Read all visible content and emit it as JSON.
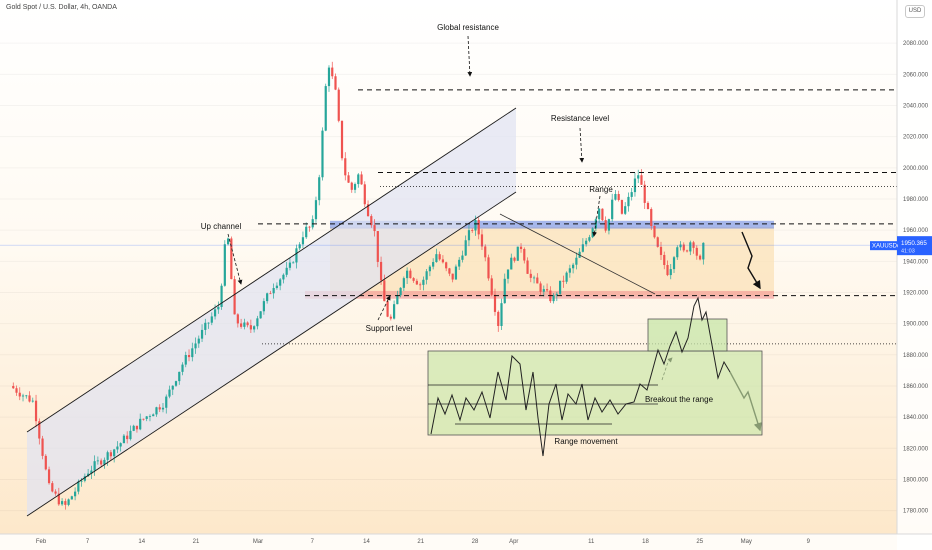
{
  "header": {
    "symbol_title": "Gold Spot / U.S. Dollar, 4h, OANDA",
    "currency": "USD"
  },
  "price_tag": {
    "symbol": "XAUUSD",
    "price": "1950.365",
    "countdown": "41:03"
  },
  "colors": {
    "up": "#26a69a",
    "down": "#ef5350",
    "resistance_zone": "#6b8be6",
    "support_zone": "#f28b8b",
    "range_zone": "#fbe1b8",
    "channel_fill": "#dfe2f2",
    "breakout_box": "#c7e6a8",
    "price_tag": "#2962ff"
  },
  "annotations": {
    "global_resistance": "Global resistance",
    "resistance_level": "Resistance level",
    "range": "Range",
    "up_channel": "Up channel",
    "support_level": "Support level",
    "breakout": "Breakout the range",
    "range_movement": "Range movement"
  },
  "chart_data": {
    "type": "candlestick",
    "title": "Gold Spot / U.S. Dollar, 4h, OANDA",
    "ylim": [
      1765,
      2100
    ],
    "y_ticks": [
      1780,
      1800,
      1820,
      1840,
      1860,
      1880,
      1900,
      1920,
      1940,
      1960,
      1980,
      2000,
      2020,
      2040,
      2060,
      2080
    ],
    "x_ticks": [
      "Feb",
      "7",
      "14",
      "21",
      "Mar",
      "7",
      "14",
      "21",
      "28",
      "Apr",
      "11",
      "18",
      "25",
      "May",
      "9"
    ],
    "x_tick_days": [
      1,
      7,
      14,
      21,
      29,
      36,
      43,
      50,
      57,
      62,
      72,
      79,
      86,
      92,
      100
    ],
    "levels": {
      "global_resistance": 2050,
      "upper_dotted": 1997,
      "dotted_2": 1988,
      "resistance": 1964,
      "support": 1918,
      "lower_dotted": 1887
    },
    "resistance_zone": [
      1961,
      1966
    ],
    "support_zone": [
      1916,
      1921
    ],
    "range_zone": [
      1918,
      1962
    ],
    "last_price": 1950.365,
    "ohlc_path": [
      [
        -3,
        1860
      ],
      [
        0,
        1850
      ],
      [
        2,
        1795
      ],
      [
        4,
        1782
      ],
      [
        7,
        1805
      ],
      [
        11,
        1822
      ],
      [
        14,
        1838
      ],
      [
        17,
        1850
      ],
      [
        19,
        1872
      ],
      [
        22,
        1896
      ],
      [
        24,
        1912
      ],
      [
        25,
        1962
      ],
      [
        26,
        1902
      ],
      [
        28,
        1896
      ],
      [
        31,
        1925
      ],
      [
        33,
        1935
      ],
      [
        35,
        1960
      ],
      [
        36,
        1962
      ],
      [
        37,
        2000
      ],
      [
        38,
        2070
      ],
      [
        39,
        2048
      ],
      [
        40,
        2000
      ],
      [
        41,
        1985
      ],
      [
        42,
        1996
      ],
      [
        43,
        1975
      ],
      [
        44,
        1960
      ],
      [
        45,
        1920
      ],
      [
        46,
        1900
      ],
      [
        48,
        1935
      ],
      [
        50,
        1925
      ],
      [
        52,
        1945
      ],
      [
        54,
        1928
      ],
      [
        56,
        1955
      ],
      [
        57,
        1965
      ],
      [
        58,
        1950
      ],
      [
        59,
        1925
      ],
      [
        60,
        1900
      ],
      [
        61,
        1935
      ],
      [
        63,
        1950
      ],
      [
        64,
        1930
      ],
      [
        66,
        1920
      ],
      [
        67,
        1915
      ],
      [
        68,
        1925
      ],
      [
        70,
        1940
      ],
      [
        72,
        1960
      ],
      [
        73,
        1975
      ],
      [
        74,
        1960
      ],
      [
        75,
        1985
      ],
      [
        76,
        1970
      ],
      [
        77,
        1982
      ],
      [
        78,
        1997
      ],
      [
        79,
        1978
      ],
      [
        80,
        1955
      ],
      [
        81,
        1942
      ],
      [
        82,
        1932
      ],
      [
        83,
        1952
      ],
      [
        84,
        1945
      ],
      [
        85,
        1955
      ],
      [
        86,
        1938
      ],
      [
        86.5,
        1950
      ]
    ]
  }
}
